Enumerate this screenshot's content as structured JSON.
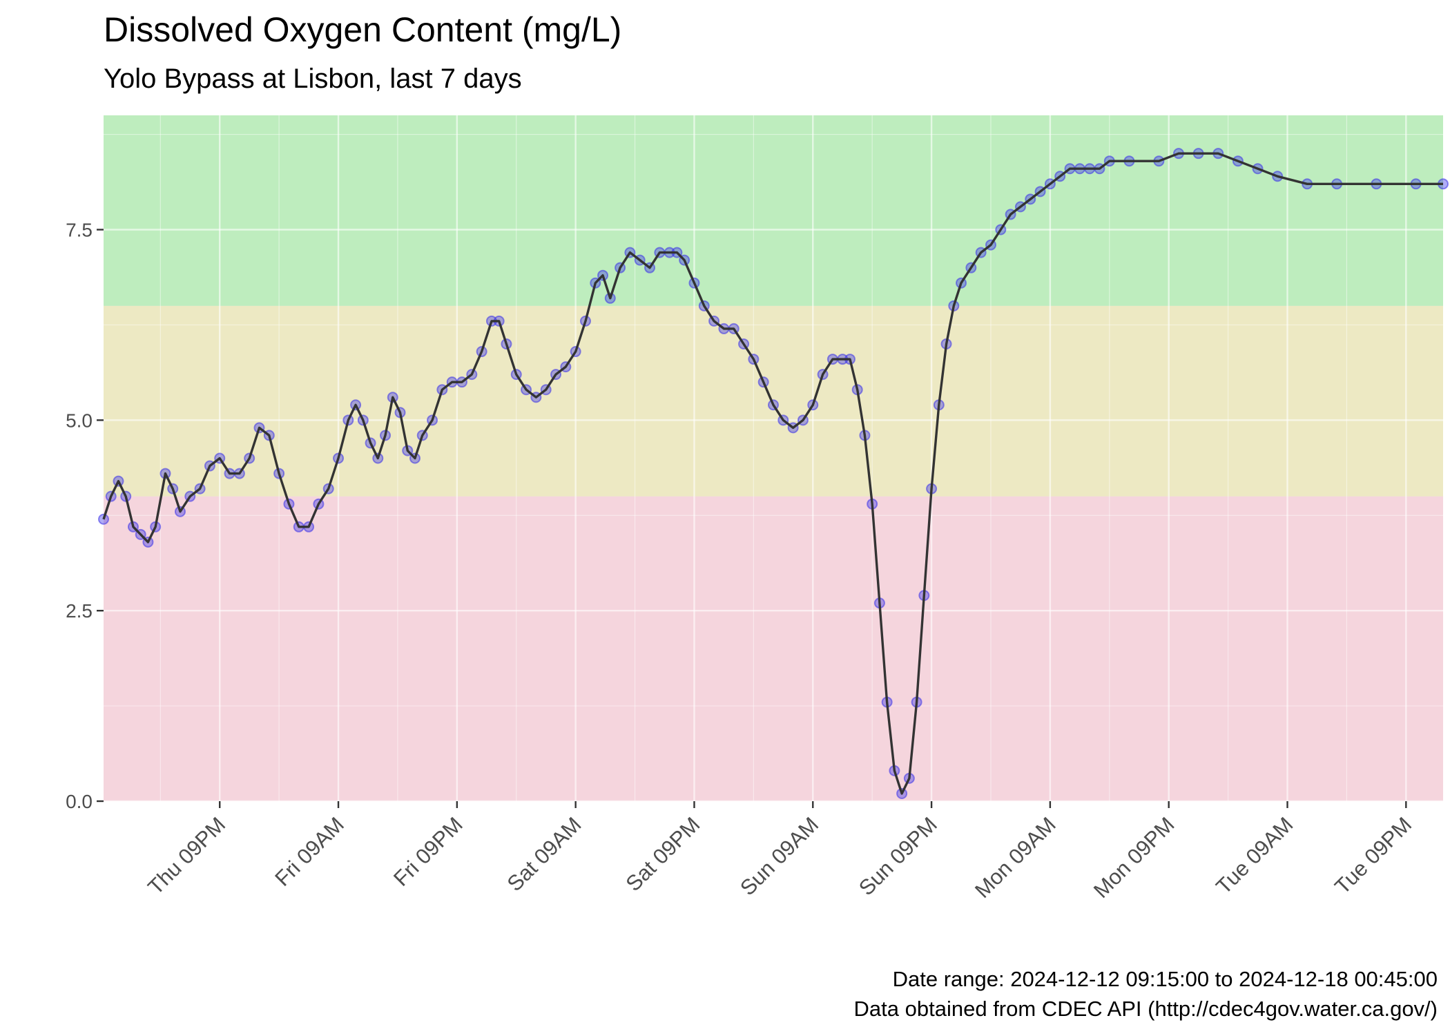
{
  "chart_data": {
    "type": "line",
    "title": "Dissolved Oxygen Content (mg/L)",
    "subtitle": "Yolo Bypass at Lisbon, last 7 days",
    "caption_line1": "Date range: 2024-12-12 09:15:00 to 2024-12-18 00:45:00",
    "caption_line2": "Data obtained from CDEC API (http://cdec4gov.water.ca.gov/)",
    "xlabel": "",
    "ylabel": "",
    "x_range": [
      "2024-12-12 09:15",
      "2024-12-18 00:45"
    ],
    "ylim": [
      0,
      9
    ],
    "y_ticks": [
      0,
      2.5,
      5,
      7.5
    ],
    "y_tick_labels": [
      "0.0",
      "2.5",
      "5.0",
      "7.5"
    ],
    "x_ticks": [
      {
        "t": "2024-12-12 21:00",
        "label": "Thu 09PM"
      },
      {
        "t": "2024-12-13 09:00",
        "label": "Fri 09AM"
      },
      {
        "t": "2024-12-13 21:00",
        "label": "Fri 09PM"
      },
      {
        "t": "2024-12-14 09:00",
        "label": "Sat 09AM"
      },
      {
        "t": "2024-12-14 21:00",
        "label": "Sat 09PM"
      },
      {
        "t": "2024-12-15 09:00",
        "label": "Sun 09AM"
      },
      {
        "t": "2024-12-15 21:00",
        "label": "Sun 09PM"
      },
      {
        "t": "2024-12-16 09:00",
        "label": "Mon 09AM"
      },
      {
        "t": "2024-12-16 21:00",
        "label": "Mon 09PM"
      },
      {
        "t": "2024-12-17 09:00",
        "label": "Tue 09AM"
      },
      {
        "t": "2024-12-17 21:00",
        "label": "Tue 09PM"
      }
    ],
    "grid": true,
    "bands": [
      {
        "from": 0,
        "to": 4,
        "color": "#f5d5dd"
      },
      {
        "from": 4,
        "to": 6.5,
        "color": "#ede9c3"
      },
      {
        "from": 6.5,
        "to": 9,
        "color": "#beedbe"
      }
    ],
    "colors": {
      "panel": "#ebebeb",
      "line": "#333333",
      "point": "#3a32e8",
      "grid": "#ffffff"
    },
    "series": [
      {
        "values": [
          [
            "2024-12-12 09:15",
            3.7
          ],
          [
            "2024-12-12 10:00",
            4.0
          ],
          [
            "2024-12-12 10:45",
            4.2
          ],
          [
            "2024-12-12 11:30",
            4.0
          ],
          [
            "2024-12-12 12:15",
            3.6
          ],
          [
            "2024-12-12 13:00",
            3.5
          ],
          [
            "2024-12-12 13:45",
            3.4
          ],
          [
            "2024-12-12 14:30",
            3.6
          ],
          [
            "2024-12-12 15:30",
            4.3
          ],
          [
            "2024-12-12 16:15",
            4.1
          ],
          [
            "2024-12-12 17:00",
            3.8
          ],
          [
            "2024-12-12 18:00",
            4.0
          ],
          [
            "2024-12-12 19:00",
            4.1
          ],
          [
            "2024-12-12 20:00",
            4.4
          ],
          [
            "2024-12-12 21:00",
            4.5
          ],
          [
            "2024-12-12 22:00",
            4.3
          ],
          [
            "2024-12-12 23:00",
            4.3
          ],
          [
            "2024-12-13 00:00",
            4.5
          ],
          [
            "2024-12-13 01:00",
            4.9
          ],
          [
            "2024-12-13 02:00",
            4.8
          ],
          [
            "2024-12-13 03:00",
            4.3
          ],
          [
            "2024-12-13 04:00",
            3.9
          ],
          [
            "2024-12-13 05:00",
            3.6
          ],
          [
            "2024-12-13 06:00",
            3.6
          ],
          [
            "2024-12-13 07:00",
            3.9
          ],
          [
            "2024-12-13 08:00",
            4.1
          ],
          [
            "2024-12-13 09:00",
            4.5
          ],
          [
            "2024-12-13 10:00",
            5.0
          ],
          [
            "2024-12-13 10:45",
            5.2
          ],
          [
            "2024-12-13 11:30",
            5.0
          ],
          [
            "2024-12-13 12:15",
            4.7
          ],
          [
            "2024-12-13 13:00",
            4.5
          ],
          [
            "2024-12-13 13:45",
            4.8
          ],
          [
            "2024-12-13 14:30",
            5.3
          ],
          [
            "2024-12-13 15:15",
            5.1
          ],
          [
            "2024-12-13 16:00",
            4.6
          ],
          [
            "2024-12-13 16:45",
            4.5
          ],
          [
            "2024-12-13 17:30",
            4.8
          ],
          [
            "2024-12-13 18:30",
            5.0
          ],
          [
            "2024-12-13 19:30",
            5.4
          ],
          [
            "2024-12-13 20:30",
            5.5
          ],
          [
            "2024-12-13 21:30",
            5.5
          ],
          [
            "2024-12-13 22:30",
            5.6
          ],
          [
            "2024-12-13 23:30",
            5.9
          ],
          [
            "2024-12-14 00:30",
            6.3
          ],
          [
            "2024-12-14 01:15",
            6.3
          ],
          [
            "2024-12-14 02:00",
            6.0
          ],
          [
            "2024-12-14 03:00",
            5.6
          ],
          [
            "2024-12-14 04:00",
            5.4
          ],
          [
            "2024-12-14 05:00",
            5.3
          ],
          [
            "2024-12-14 06:00",
            5.4
          ],
          [
            "2024-12-14 07:00",
            5.6
          ],
          [
            "2024-12-14 08:00",
            5.7
          ],
          [
            "2024-12-14 09:00",
            5.9
          ],
          [
            "2024-12-14 10:00",
            6.3
          ],
          [
            "2024-12-14 11:00",
            6.8
          ],
          [
            "2024-12-14 11:45",
            6.9
          ],
          [
            "2024-12-14 12:30",
            6.6
          ],
          [
            "2024-12-14 13:30",
            7.0
          ],
          [
            "2024-12-14 14:30",
            7.2
          ],
          [
            "2024-12-14 15:30",
            7.1
          ],
          [
            "2024-12-14 16:30",
            7.0
          ],
          [
            "2024-12-14 17:30",
            7.2
          ],
          [
            "2024-12-14 18:30",
            7.2
          ],
          [
            "2024-12-14 19:15",
            7.2
          ],
          [
            "2024-12-14 20:00",
            7.1
          ],
          [
            "2024-12-14 21:00",
            6.8
          ],
          [
            "2024-12-14 22:00",
            6.5
          ],
          [
            "2024-12-14 23:00",
            6.3
          ],
          [
            "2024-12-15 00:00",
            6.2
          ],
          [
            "2024-12-15 01:00",
            6.2
          ],
          [
            "2024-12-15 02:00",
            6.0
          ],
          [
            "2024-12-15 03:00",
            5.8
          ],
          [
            "2024-12-15 04:00",
            5.5
          ],
          [
            "2024-12-15 05:00",
            5.2
          ],
          [
            "2024-12-15 06:00",
            5.0
          ],
          [
            "2024-12-15 07:00",
            4.9
          ],
          [
            "2024-12-15 08:00",
            5.0
          ],
          [
            "2024-12-15 09:00",
            5.2
          ],
          [
            "2024-12-15 10:00",
            5.6
          ],
          [
            "2024-12-15 11:00",
            5.8
          ],
          [
            "2024-12-15 12:00",
            5.8
          ],
          [
            "2024-12-15 12:45",
            5.8
          ],
          [
            "2024-12-15 13:30",
            5.4
          ],
          [
            "2024-12-15 14:15",
            4.8
          ],
          [
            "2024-12-15 15:00",
            3.9
          ],
          [
            "2024-12-15 15:45",
            2.6
          ],
          [
            "2024-12-15 16:30",
            1.3
          ],
          [
            "2024-12-15 17:15",
            0.4
          ],
          [
            "2024-12-15 18:00",
            0.1
          ],
          [
            "2024-12-15 18:45",
            0.3
          ],
          [
            "2024-12-15 19:30",
            1.3
          ],
          [
            "2024-12-15 20:15",
            2.7
          ],
          [
            "2024-12-15 21:00",
            4.1
          ],
          [
            "2024-12-15 21:45",
            5.2
          ],
          [
            "2024-12-15 22:30",
            6.0
          ],
          [
            "2024-12-15 23:15",
            6.5
          ],
          [
            "2024-12-16 00:00",
            6.8
          ],
          [
            "2024-12-16 01:00",
            7.0
          ],
          [
            "2024-12-16 02:00",
            7.2
          ],
          [
            "2024-12-16 03:00",
            7.3
          ],
          [
            "2024-12-16 04:00",
            7.5
          ],
          [
            "2024-12-16 05:00",
            7.7
          ],
          [
            "2024-12-16 06:00",
            7.8
          ],
          [
            "2024-12-16 07:00",
            7.9
          ],
          [
            "2024-12-16 08:00",
            8.0
          ],
          [
            "2024-12-16 09:00",
            8.1
          ],
          [
            "2024-12-16 10:00",
            8.2
          ],
          [
            "2024-12-16 11:00",
            8.3
          ],
          [
            "2024-12-16 12:00",
            8.3
          ],
          [
            "2024-12-16 13:00",
            8.3
          ],
          [
            "2024-12-16 14:00",
            8.3
          ],
          [
            "2024-12-16 15:00",
            8.4
          ],
          [
            "2024-12-16 17:00",
            8.4
          ],
          [
            "2024-12-16 20:00",
            8.4
          ],
          [
            "2024-12-16 22:00",
            8.5
          ],
          [
            "2024-12-17 00:00",
            8.5
          ],
          [
            "2024-12-17 02:00",
            8.5
          ],
          [
            "2024-12-17 04:00",
            8.4
          ],
          [
            "2024-12-17 06:00",
            8.3
          ],
          [
            "2024-12-17 08:00",
            8.2
          ],
          [
            "2024-12-17 11:00",
            8.1
          ],
          [
            "2024-12-17 14:00",
            8.1
          ],
          [
            "2024-12-17 18:00",
            8.1
          ],
          [
            "2024-12-17 22:00",
            8.1
          ],
          [
            "2024-12-18 00:45",
            8.1
          ]
        ]
      }
    ]
  }
}
